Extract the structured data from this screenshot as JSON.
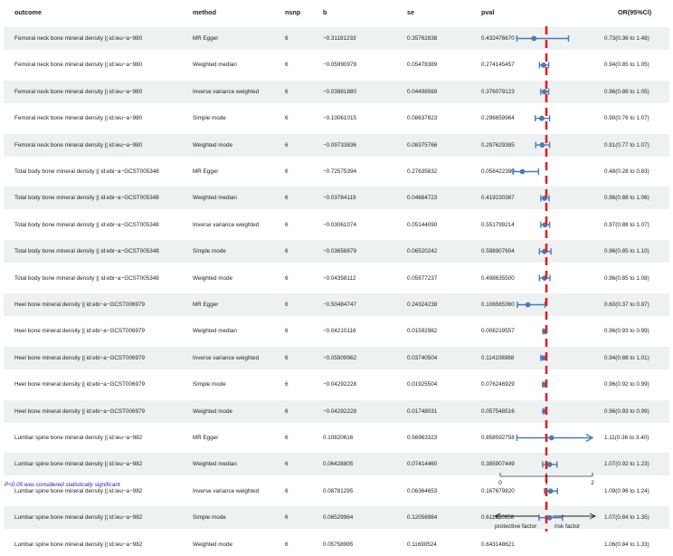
{
  "chart_data": {
    "type": "forest",
    "columns": [
      "outcome",
      "method",
      "nsnp",
      "b",
      "se",
      "pval",
      "OR(95%CI)"
    ],
    "rows": [
      {
        "outcome": "Femoral neck bone mineral density || id:ieu−a−980",
        "method": "MR Egger",
        "nsnp": "6",
        "b": "−0.31181233",
        "se": "0.35762838",
        "pval": "0.432476670",
        "or_ci": "0.73(0.36 to 1.48)",
        "or": 0.73,
        "lo": 0.36,
        "hi": 1.48
      },
      {
        "outcome": "Femoral neck bone mineral density || id:ieu−a−980",
        "method": "Weighted median",
        "nsnp": "6",
        "b": "−0.05990979",
        "se": "0.05478389",
        "pval": "0.274145457",
        "or_ci": "0.94(0.85 to 1.05)",
        "or": 0.94,
        "lo": 0.85,
        "hi": 1.05
      },
      {
        "outcome": "Femoral neck bone mineral density || id:ieu−a−980",
        "method": "Inverse variance weighted",
        "nsnp": "6",
        "b": "−0.03981880",
        "se": "0.04498569",
        "pval": "0.376079123",
        "or_ci": "0.96(0.88 to 1.05)",
        "or": 0.96,
        "lo": 0.88,
        "hi": 1.05
      },
      {
        "outcome": "Femoral neck bone mineral density || id:ieu−a−980",
        "method": "Simple mode",
        "nsnp": "6",
        "b": "−0.10061015",
        "se": "0.08637823",
        "pval": "0.296659964",
        "or_ci": "0.90(0.76 to 1.07)",
        "or": 0.9,
        "lo": 0.76,
        "hi": 1.07
      },
      {
        "outcome": "Femoral neck bone mineral density || id:ieu−a−980",
        "method": "Weighted mode",
        "nsnp": "6",
        "b": "−0.09733836",
        "se": "0.08375766",
        "pval": "0.297629385",
        "or_ci": "0.91(0.77 to 1.07)",
        "or": 0.91,
        "lo": 0.77,
        "hi": 1.07
      },
      {
        "outcome": "Total body bone mineral density || id:ebi−a−GCST005348",
        "method": "MR Egger",
        "nsnp": "6",
        "b": "−0.72575394",
        "se": "0.27635832",
        "pval": "0.058422390",
        "or_ci": "0.48(0.28 to 0.83)",
        "or": 0.48,
        "lo": 0.28,
        "hi": 0.83
      },
      {
        "outcome": "Total body bone mineral density || id:ebi−a−GCST005348",
        "method": "Weighted median",
        "nsnp": "6",
        "b": "−0.03784119",
        "se": "0.04684723",
        "pval": "0.419230367",
        "or_ci": "0.96(0.88 to 1.06)",
        "or": 0.96,
        "lo": 0.88,
        "hi": 1.06
      },
      {
        "outcome": "Total body bone mineral density || id:ebi−a−GCST005348",
        "method": "Inverse variance weighted",
        "nsnp": "6",
        "b": "−0.03061074",
        "se": "0.05144090",
        "pval": "0.551799214",
        "or_ci": "0.97(0.88 to 1.07)",
        "or": 0.97,
        "lo": 0.88,
        "hi": 1.07
      },
      {
        "outcome": "Total body bone mineral density || id:ebi−a−GCST005348",
        "method": "Simple mode",
        "nsnp": "6",
        "b": "−0.03658879",
        "se": "0.06520242",
        "pval": "0.598907604",
        "or_ci": "0.96(0.85 to 1.10)",
        "or": 0.96,
        "lo": 0.85,
        "hi": 1.1
      },
      {
        "outcome": "Total body bone mineral density || id:ebi−a−GCST005348",
        "method": "Weighted mode",
        "nsnp": "6",
        "b": "−0.04358112",
        "se": "0.05977237",
        "pval": "0.498635500",
        "or_ci": "0.96(0.85 to 1.08)",
        "or": 0.96,
        "lo": 0.85,
        "hi": 1.08
      },
      {
        "outcome": "Heel bone mineral density || id:ebi−a−GCST006979",
        "method": "MR Egger",
        "nsnp": "6",
        "b": "−0.50484747",
        "se": "0.24324238",
        "pval": "0.106565360",
        "or_ci": "0.60(0.37 to 0.97)",
        "or": 0.6,
        "lo": 0.37,
        "hi": 0.97
      },
      {
        "outcome": "Heel bone mineral density || id:ebi−a−GCST006979",
        "method": "Weighted median",
        "nsnp": "6",
        "b": "−0.04210116",
        "se": "0.01592982",
        "pval": "0.008219557",
        "or_ci": "0.96(0.93 to 0.99)",
        "or": 0.96,
        "lo": 0.93,
        "hi": 0.99
      },
      {
        "outcome": "Heel bone mineral density || id:ebi−a−GCST006979",
        "method": "Inverse variance weighted",
        "nsnp": "6",
        "b": "−0.05909962",
        "se": "0.03740504",
        "pval": "0.114108988",
        "or_ci": "0.94(0.88 to 1.01)",
        "or": 0.94,
        "lo": 0.88,
        "hi": 1.01
      },
      {
        "outcome": "Heel bone mineral density || id:ebi−a−GCST006979",
        "method": "Simple mode",
        "nsnp": "6",
        "b": "−0.04292228",
        "se": "0.01925504",
        "pval": "0.076246929",
        "or_ci": "0.96(0.92 to 0.99)",
        "or": 0.96,
        "lo": 0.92,
        "hi": 0.99
      },
      {
        "outcome": "Heel bone mineral density || id:ebi−a−GCST006979",
        "method": "Weighted mode",
        "nsnp": "6",
        "b": "−0.04292228",
        "se": "0.01748031",
        "pval": "0.057548516",
        "or_ci": "0.96(0.93 to 0.99)",
        "or": 0.96,
        "lo": 0.93,
        "hi": 0.99
      },
      {
        "outcome": "Lumbar spine bone mineral density || id:ieu−a−982",
        "method": "MR Egger",
        "nsnp": "6",
        "b": "0.10820616",
        "se": "0.56963323",
        "pval": "0.858592758",
        "or_ci": "1.11(0.36 to 3.40)",
        "or": 1.11,
        "lo": 0.36,
        "hi": 3.4,
        "arrow_right": true
      },
      {
        "outcome": "Lumbar spine bone mineral density || id:ieu−a−982",
        "method": "Weighted median",
        "nsnp": "6",
        "b": "0.06428805",
        "se": "0.07414460",
        "pval": "0.385907449",
        "or_ci": "1.07(0.92 to 1.23)",
        "or": 1.07,
        "lo": 0.92,
        "hi": 1.23
      },
      {
        "outcome": "Lumbar spine bone mineral density || id:ieu−a−982",
        "method": "Inverse variance weighted",
        "nsnp": "6",
        "b": "0.08781295",
        "se": "0.06364653",
        "pval": "0.167679820",
        "or_ci": "1.09(0.96 to 1.24)",
        "or": 1.09,
        "lo": 0.96,
        "hi": 1.24
      },
      {
        "outcome": "Lumbar spine bone mineral density || id:ieu−a−982",
        "method": "Simple mode",
        "nsnp": "6",
        "b": "0.06529964",
        "se": "0.12056984",
        "pval": "0.611350958",
        "or_ci": "1.07(0.84 to 1.35)",
        "or": 1.07,
        "lo": 0.84,
        "hi": 1.35
      },
      {
        "outcome": "Lumbar spine bone mineral density || id:ieu−a−982",
        "method": "Weighted mode",
        "nsnp": "6",
        "b": "0.05758995",
        "se": "0.11690524",
        "pval": "0.643148621",
        "or_ci": "1.06(0.84 to 1.33)",
        "or": 1.06,
        "lo": 0.84,
        "hi": 1.33
      }
    ],
    "x_axis": {
      "range": [
        0,
        2
      ],
      "ticks": [
        "0",
        "1",
        "2"
      ]
    },
    "reference_line": 1,
    "note": "P<0.05 was considered statistically significant",
    "direction_labels": {
      "left": "protective factor",
      "right": "risk factor"
    },
    "colors": {
      "point": "#4a7ab6",
      "reference": "#e02020",
      "row_shade": "#edf1f2",
      "note": "#2222bb"
    }
  }
}
